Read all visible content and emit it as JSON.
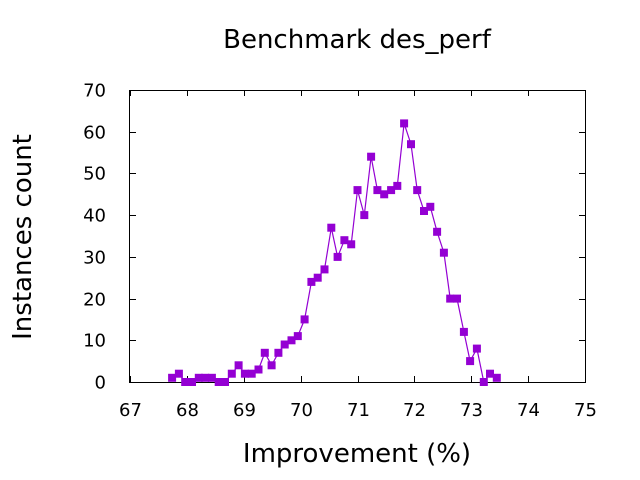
{
  "chart_data": {
    "type": "line",
    "title": "Benchmark des_perf",
    "xlabel": "Improvement (%)",
    "ylabel": "Instances count",
    "xlim": [
      67,
      75
    ],
    "ylim": [
      0,
      70
    ],
    "x_ticks": [
      "67",
      "68",
      "69",
      "70",
      "71",
      "72",
      "73",
      "74",
      "75"
    ],
    "y_ticks": [
      "0",
      "10",
      "20",
      "30",
      "40",
      "50",
      "60",
      "70"
    ],
    "grid": false,
    "legend": "none",
    "series": [
      {
        "color": "#9400d3",
        "marker": "square",
        "x": [
          67.74,
          67.86,
          67.97,
          68.09,
          68.21,
          68.32,
          68.44,
          68.56,
          68.67,
          68.79,
          68.91,
          69.02,
          69.14,
          69.26,
          69.37,
          69.49,
          69.61,
          69.72,
          69.84,
          69.95,
          70.07,
          70.19,
          70.3,
          70.42,
          70.54,
          70.65,
          70.77,
          70.89,
          71.0,
          71.12,
          71.24,
          71.35,
          71.47,
          71.59,
          71.7,
          71.82,
          71.94,
          72.05,
          72.17,
          72.28,
          72.4,
          72.52,
          72.63,
          72.75,
          72.87,
          72.98,
          73.1,
          73.22,
          73.33,
          73.45,
          73.57,
          73.68,
          73.8,
          73.92,
          74.03,
          74.15,
          74.27
        ],
        "y": [
          1,
          2,
          0,
          0,
          1,
          1,
          1,
          0,
          0,
          2,
          4,
          2,
          2,
          3,
          7,
          4,
          7,
          9,
          10,
          11,
          15,
          24,
          25,
          27,
          37,
          30,
          34,
          33,
          46,
          40,
          54,
          46,
          45,
          46,
          47,
          62,
          57,
          46,
          41,
          42,
          36,
          31,
          20,
          20,
          12,
          5,
          8,
          0,
          2,
          1,
          null,
          null,
          null,
          null,
          null,
          null,
          null
        ]
      }
    ]
  }
}
